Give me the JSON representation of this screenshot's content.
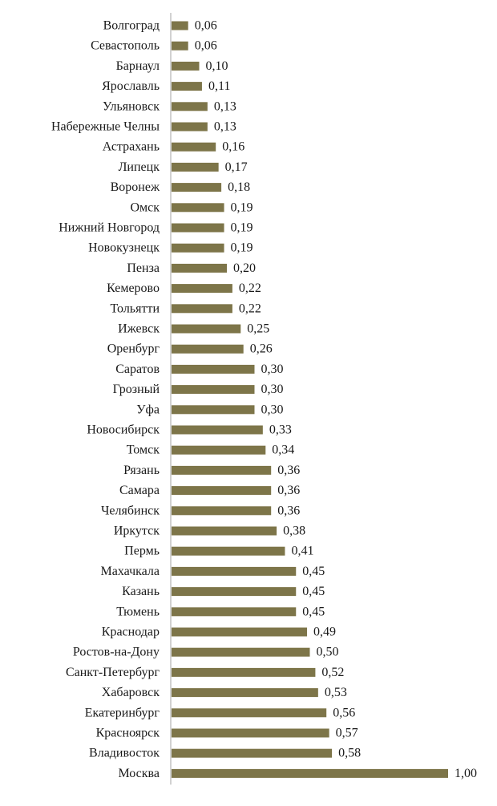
{
  "chart_data": {
    "type": "bar",
    "orientation": "horizontal",
    "title": "",
    "xlabel": "",
    "ylabel": "",
    "xlim": [
      0,
      1
    ],
    "grid": false,
    "legend": "none",
    "bar_color": "#7d7549",
    "axis_color": "#a6a6a6",
    "categories": [
      "Волгоград",
      "Севастополь",
      "Барнаул",
      "Ярославль",
      "Ульяновск",
      "Набережные Челны",
      "Астрахань",
      "Липецк",
      "Воронеж",
      "Омск",
      "Нижний Новгород",
      "Новокузнецк",
      "Пенза",
      "Кемерово",
      "Тольятти",
      "Ижевск",
      "Оренбург",
      "Саратов",
      "Грозный",
      "Уфа",
      "Новосибирск",
      "Томск",
      "Рязань",
      "Самара",
      "Челябинск",
      "Иркутск",
      "Пермь",
      "Махачкала",
      "Казань",
      "Тюмень",
      "Краснодар",
      "Ростов-на-Дону",
      "Санкт-Петербург",
      "Хабаровск",
      "Екатеринбург",
      "Красноярск",
      "Владивосток",
      "Москва"
    ],
    "values": [
      0.06,
      0.06,
      0.1,
      0.11,
      0.13,
      0.13,
      0.16,
      0.17,
      0.18,
      0.19,
      0.19,
      0.19,
      0.2,
      0.22,
      0.22,
      0.25,
      0.26,
      0.3,
      0.3,
      0.3,
      0.33,
      0.34,
      0.36,
      0.36,
      0.36,
      0.38,
      0.41,
      0.45,
      0.45,
      0.45,
      0.49,
      0.5,
      0.52,
      0.53,
      0.56,
      0.57,
      0.58,
      1.0
    ],
    "value_labels": [
      "0,06",
      "0,06",
      "0,10",
      "0,11",
      "0,13",
      "0,13",
      "0,16",
      "0,17",
      "0,18",
      "0,19",
      "0,19",
      "0,19",
      "0,20",
      "0,22",
      "0,22",
      "0,25",
      "0,26",
      "0,30",
      "0,30",
      "0,30",
      "0,33",
      "0,34",
      "0,36",
      "0,36",
      "0,36",
      "0,38",
      "0,41",
      "0,45",
      "0,45",
      "0,45",
      "0,49",
      "0,50",
      "0,52",
      "0,53",
      "0,56",
      "0,57",
      "0,58",
      "1,00"
    ]
  }
}
